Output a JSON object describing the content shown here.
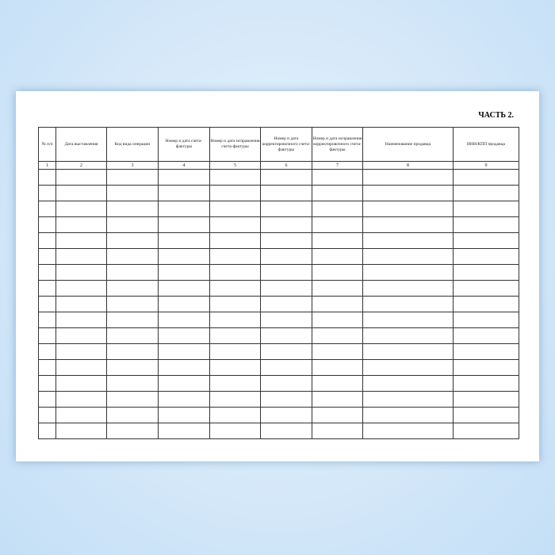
{
  "document": {
    "part_label": "ЧАСТЬ 2.",
    "columns": [
      {
        "header": "№ п/п",
        "number": "1"
      },
      {
        "header": "Дата выставления",
        "number": "2"
      },
      {
        "header": "Код вида операции",
        "number": "3"
      },
      {
        "header": "Номер и дата счета-фактуры",
        "number": "4"
      },
      {
        "header": "Номер и дата исправления счета-фактуры",
        "number": "5"
      },
      {
        "header": "Номер и дата корректировочного счета-фактуры",
        "number": "6"
      },
      {
        "header": "Номер и дата исправления корректировочного счета-фактуры",
        "number": "7"
      },
      {
        "header": "Наименование продавца",
        "number": "8"
      },
      {
        "header": "ИНН/КПП продавца",
        "number": "9"
      }
    ],
    "empty_rows": 17
  }
}
